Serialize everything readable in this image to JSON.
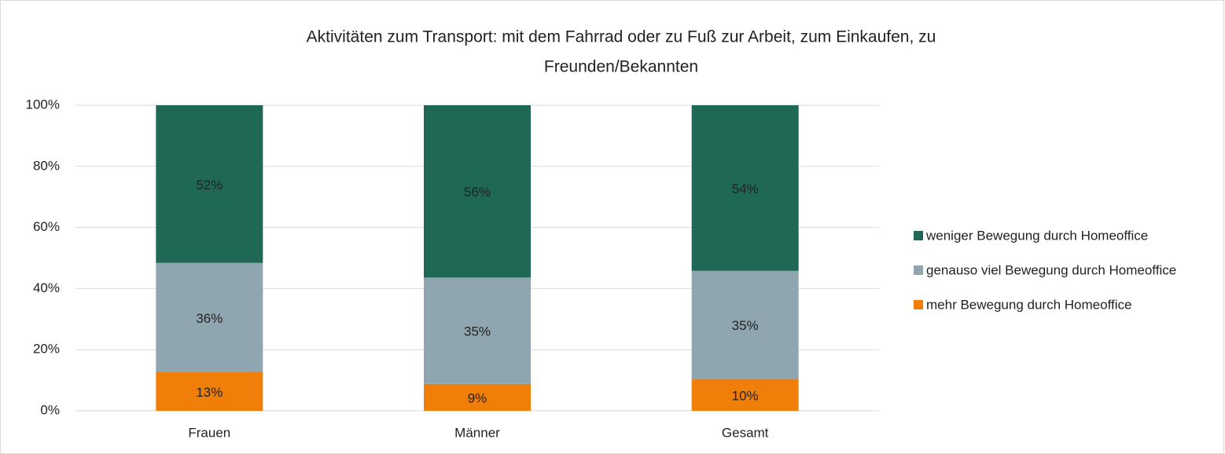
{
  "chart_data": {
    "type": "stacked_bar",
    "title": [
      "Aktivitäten zum Transport: mit dem Fahrrad oder zu Fuß zur Arbeit, zum Einkaufen, zu",
      "Freunden/Bekannten"
    ],
    "categories": [
      "Frauen",
      "Männer",
      "Gesamt"
    ],
    "series": [
      {
        "name": "mehr Bewegung durch Homeoffice",
        "color": "#f07f09",
        "values": [
          12.6,
          8.8,
          10.4
        ],
        "value_labels": [
          "13%",
          "9%",
          "10%"
        ]
      },
      {
        "name": "genauso viel Bewegung durch Homeoffice",
        "color": "#8fa5b0",
        "values": [
          35.8,
          34.8,
          35.4
        ],
        "value_labels": [
          "36%",
          "35%",
          "35%"
        ]
      },
      {
        "name": "weniger Bewegung durch Homeoffice",
        "color": "#1f6856",
        "values": [
          51.6,
          56.4,
          54.2
        ],
        "value_labels": [
          "52%",
          "56%",
          "54%"
        ]
      }
    ],
    "ylim": [
      0,
      100
    ],
    "yticks": [
      {
        "value": 0,
        "label": "0%"
      },
      {
        "value": 20,
        "label": "20%"
      },
      {
        "value": 40,
        "label": "40%"
      },
      {
        "value": 60,
        "label": "60%"
      },
      {
        "value": 80,
        "label": "80%"
      },
      {
        "value": 100,
        "label": "100%"
      }
    ],
    "grid": true,
    "legend": "right"
  }
}
